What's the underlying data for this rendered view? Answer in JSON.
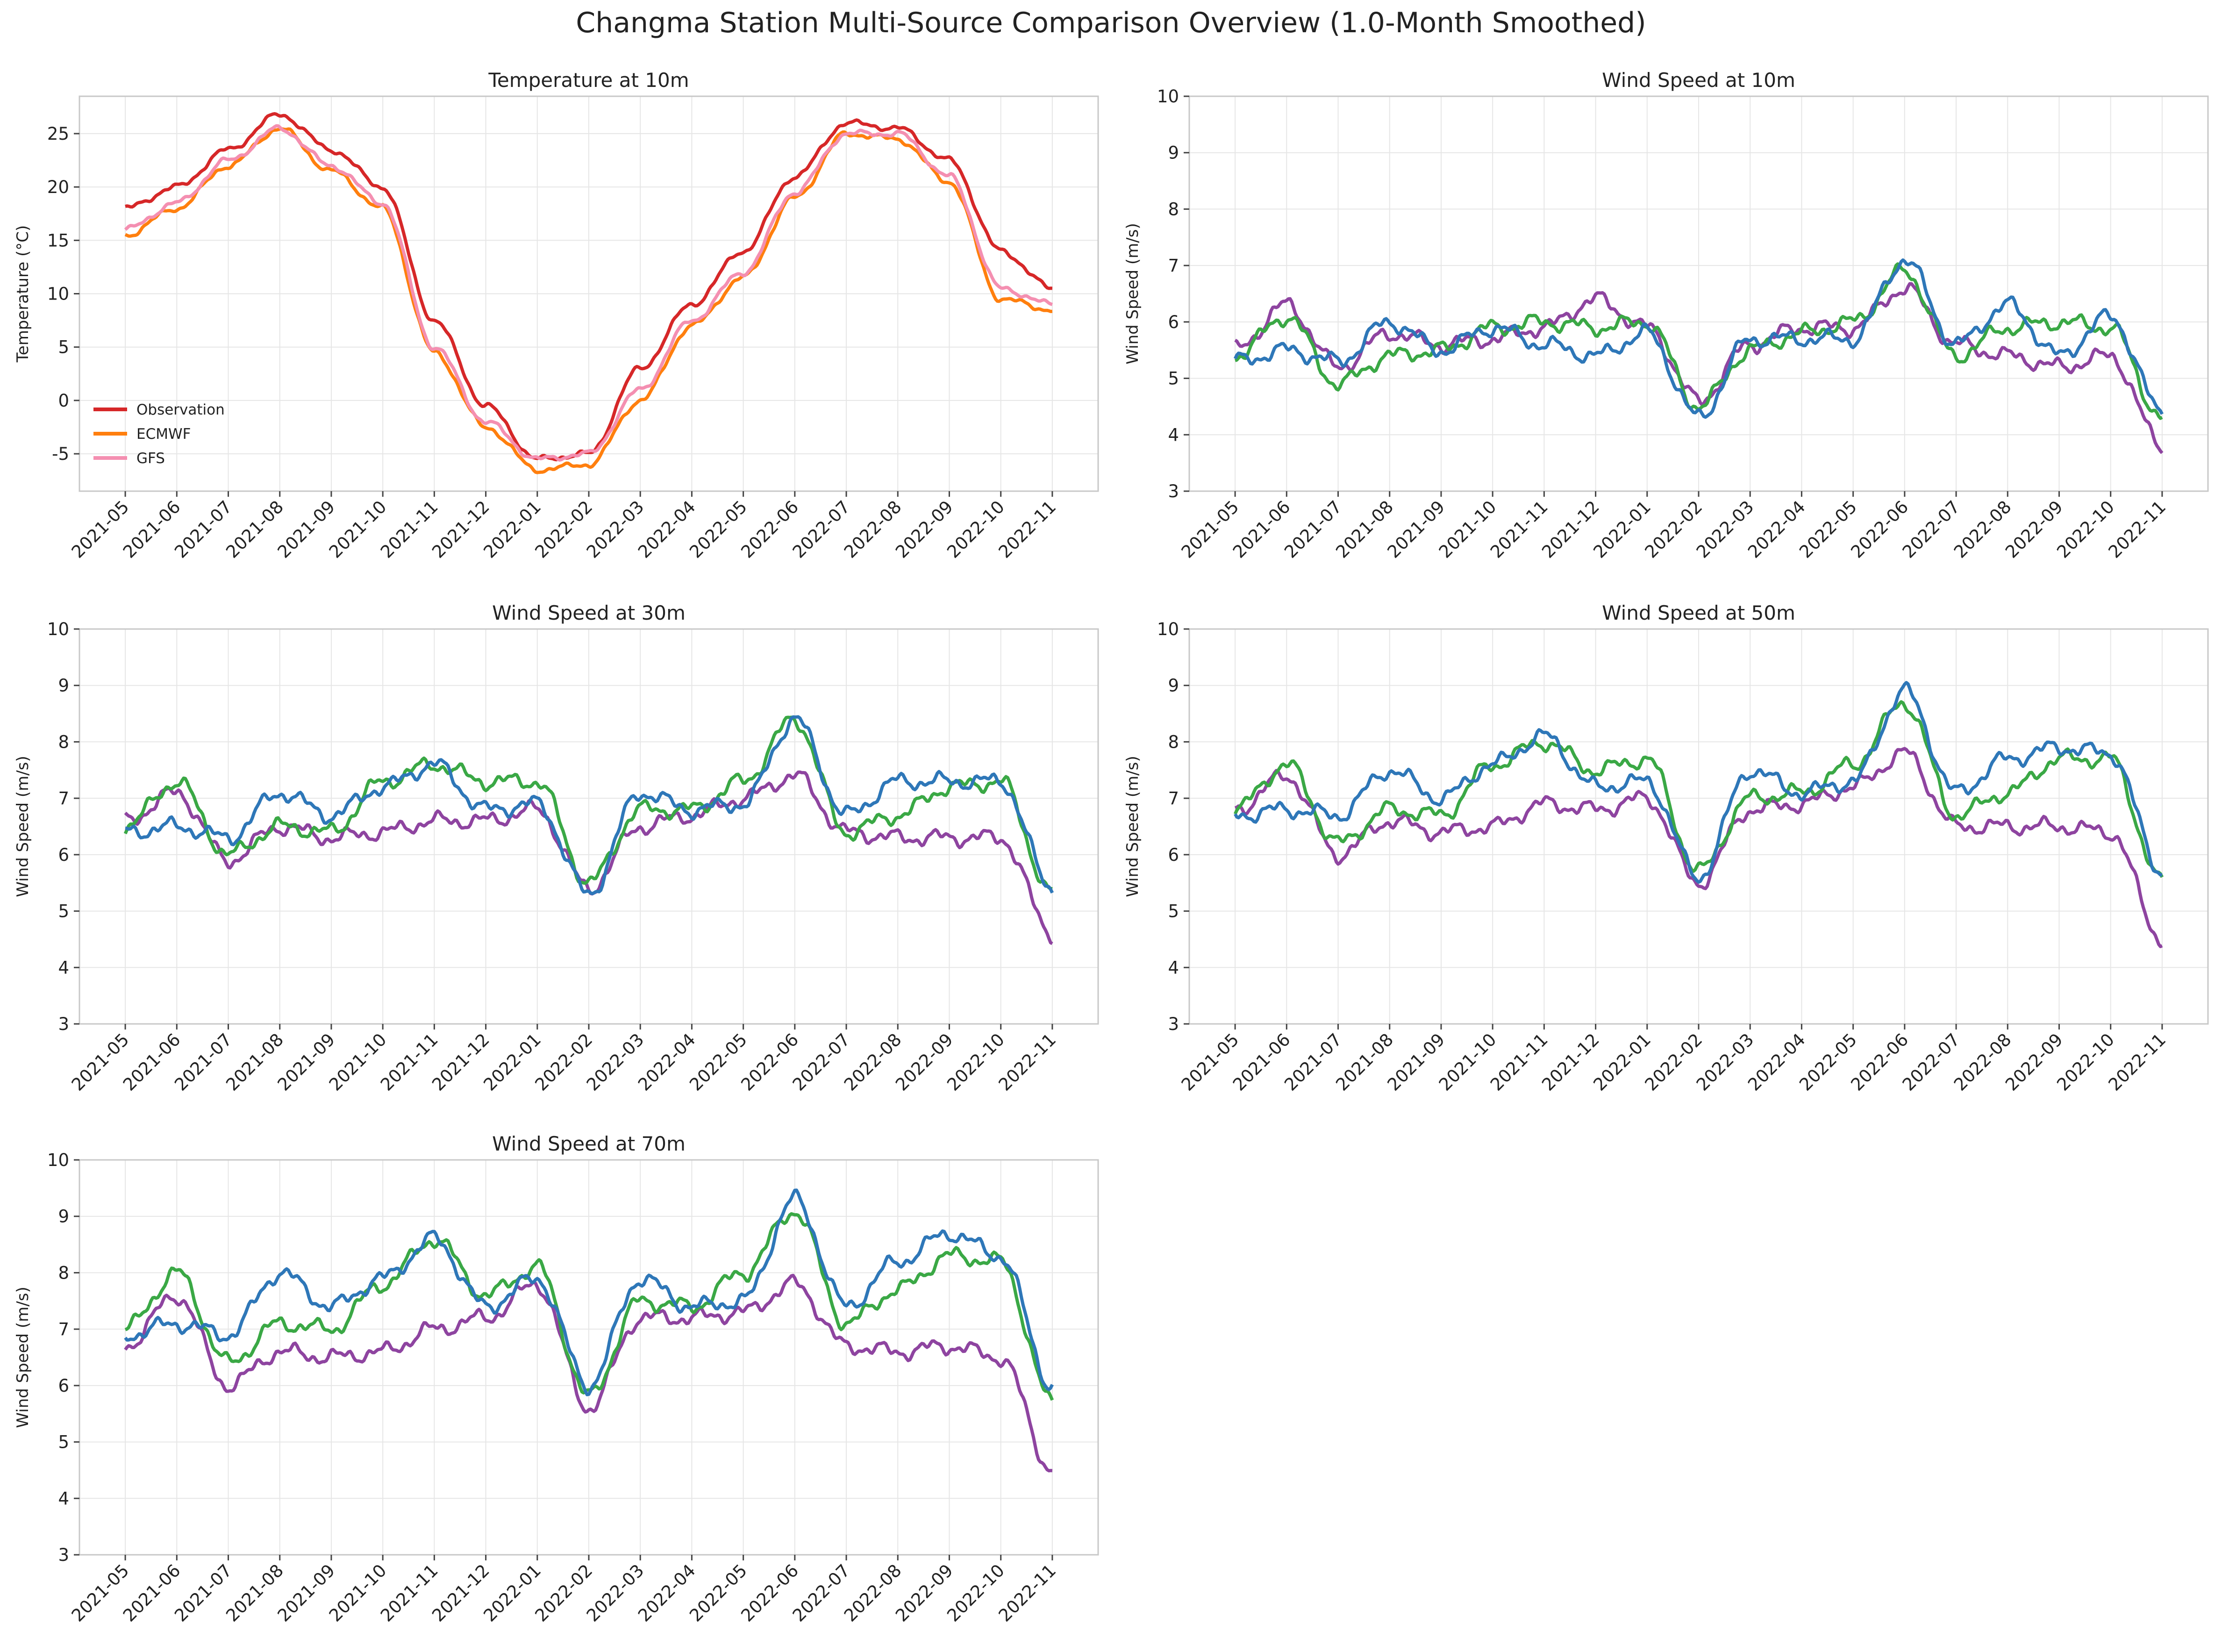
{
  "suptitle": "Changma Station Multi-Source Comparison Overview (1.0-Month Smoothed)",
  "date_ticks": [
    "2021-05",
    "2021-06",
    "2021-07",
    "2021-08",
    "2021-09",
    "2021-10",
    "2021-11",
    "2021-12",
    "2022-01",
    "2022-02",
    "2022-03",
    "2022-04",
    "2022-05",
    "2022-06",
    "2022-07",
    "2022-08",
    "2022-09",
    "2022-10",
    "2022-11"
  ],
  "colors": {
    "Observation": "#d62728",
    "ECMWF": "#ff7f0e",
    "GFS": "#f48fb1",
    "purple": "#8e44a0",
    "green": "#3aa845",
    "blue": "#2e77b8"
  },
  "chart_data": [
    {
      "type": "line",
      "title": "Temperature at 10m",
      "ylabel": "Temperature (°C)",
      "xlabel": "",
      "ylim": [
        -8.5,
        28.5
      ],
      "yticks": [
        -5,
        0,
        5,
        10,
        15,
        20,
        25
      ],
      "x_range": [
        "2021-05",
        "2022-11"
      ],
      "grid": true,
      "legend": "lower-left",
      "legend_entries": [
        "Observation",
        "ECMWF",
        "GFS"
      ],
      "x": [
        "2021-05",
        "2021-06",
        "2021-07",
        "2021-08",
        "2021-09",
        "2021-10",
        "2021-11",
        "2021-12",
        "2022-01",
        "2022-02",
        "2022-03",
        "2022-04",
        "2022-05",
        "2022-06",
        "2022-07",
        "2022-08",
        "2022-09",
        "2022-10",
        "2022-11"
      ],
      "series": [
        {
          "name": "Observation",
          "color": "#d62728",
          "values": [
            18,
            20,
            23.5,
            26.8,
            23.5,
            20,
            7.5,
            -0.5,
            -5.5,
            -5,
            3,
            9,
            14,
            21,
            26,
            25.5,
            22.5,
            14,
            10.5
          ]
        },
        {
          "name": "ECMWF",
          "color": "#ff7f0e",
          "values": [
            15.5,
            18,
            22,
            25.5,
            21.5,
            18,
            4.5,
            -2.5,
            -6.5,
            -6,
            0,
            7,
            11.5,
            19,
            25,
            24.5,
            20.5,
            9.5,
            8.5
          ]
        },
        {
          "name": "GFS",
          "color": "#f48fb1",
          "values": [
            16,
            18.5,
            22.5,
            25.5,
            22,
            18.5,
            5,
            -2,
            -5.5,
            -5,
            1,
            7.5,
            12,
            19.5,
            25,
            25,
            21,
            10.5,
            9
          ]
        }
      ]
    },
    {
      "type": "line",
      "title": "Wind Speed at 10m",
      "ylabel": "Wind Speed (m/s)",
      "xlabel": "",
      "ylim": [
        3,
        10
      ],
      "yticks": [
        3,
        4,
        5,
        6,
        7,
        8,
        9,
        10
      ],
      "x_range": [
        "2021-05",
        "2022-11"
      ],
      "grid": true,
      "x": [
        "2021-05",
        "2021-06",
        "2021-07",
        "2021-08",
        "2021-09",
        "2021-10",
        "2021-11",
        "2021-12",
        "2022-01",
        "2022-02",
        "2022-03",
        "2022-04",
        "2022-05",
        "2022-06",
        "2022-07",
        "2022-08",
        "2022-09",
        "2022-10",
        "2022-11"
      ],
      "series": [
        {
          "color": "#8e44a0",
          "values": [
            5.5,
            6.3,
            5.2,
            5.8,
            5.6,
            5.7,
            5.9,
            6.4,
            5.9,
            4.6,
            5.6,
            5.9,
            5.9,
            6.6,
            5.6,
            5.4,
            5.2,
            5.4,
            3.8
          ]
        },
        {
          "color": "#3aa845",
          "values": [
            5.4,
            6.1,
            4.9,
            5.4,
            5.5,
            5.9,
            6.0,
            5.9,
            6.0,
            4.5,
            5.5,
            5.8,
            6.0,
            6.9,
            5.4,
            5.9,
            6.0,
            5.9,
            4.3
          ]
        },
        {
          "color": "#2e77b8",
          "values": [
            5.3,
            5.5,
            5.3,
            6.0,
            5.5,
            5.9,
            5.6,
            5.4,
            5.8,
            4.3,
            5.7,
            5.7,
            5.7,
            7.1,
            5.6,
            6.3,
            5.4,
            6.1,
            4.4
          ]
        }
      ]
    },
    {
      "type": "line",
      "title": "Wind Speed at 30m",
      "ylabel": "Wind Speed (m/s)",
      "xlabel": "",
      "ylim": [
        3,
        10
      ],
      "yticks": [
        3,
        4,
        5,
        6,
        7,
        8,
        9,
        10
      ],
      "x_range": [
        "2021-05",
        "2022-11"
      ],
      "grid": true,
      "x": [
        "2021-05",
        "2021-06",
        "2021-07",
        "2021-08",
        "2021-09",
        "2021-10",
        "2021-11",
        "2021-12",
        "2022-01",
        "2022-02",
        "2022-03",
        "2022-04",
        "2022-05",
        "2022-06",
        "2022-07",
        "2022-08",
        "2022-09",
        "2022-10",
        "2022-11"
      ],
      "series": [
        {
          "color": "#8e44a0",
          "values": [
            6.6,
            7.1,
            5.9,
            6.5,
            6.3,
            6.4,
            6.6,
            6.6,
            6.8,
            5.4,
            6.5,
            6.7,
            7.0,
            7.4,
            6.4,
            6.3,
            6.3,
            6.3,
            4.6
          ]
        },
        {
          "color": "#3aa845",
          "values": [
            6.5,
            7.3,
            6.0,
            6.5,
            6.4,
            7.3,
            7.6,
            7.3,
            7.3,
            5.5,
            6.8,
            6.8,
            7.3,
            8.4,
            6.4,
            6.7,
            7.2,
            7.3,
            5.3
          ]
        },
        {
          "color": "#2e77b8",
          "values": [
            6.4,
            6.5,
            6.3,
            7.1,
            6.7,
            7.2,
            7.6,
            6.8,
            6.9,
            5.3,
            7.1,
            6.8,
            6.9,
            8.4,
            6.7,
            7.3,
            7.3,
            7.3,
            5.4
          ]
        }
      ]
    },
    {
      "type": "line",
      "title": "Wind Speed at 50m",
      "ylabel": "Wind Speed (m/s)",
      "xlabel": "",
      "ylim": [
        3,
        10
      ],
      "yticks": [
        3,
        4,
        5,
        6,
        7,
        8,
        9,
        10
      ],
      "x_range": [
        "2021-05",
        "2022-11"
      ],
      "grid": true,
      "x": [
        "2021-05",
        "2021-06",
        "2021-07",
        "2021-08",
        "2021-09",
        "2021-10",
        "2021-11",
        "2021-12",
        "2022-01",
        "2022-02",
        "2022-03",
        "2022-04",
        "2022-05",
        "2022-06",
        "2022-07",
        "2022-08",
        "2022-09",
        "2022-10",
        "2022-11"
      ],
      "series": [
        {
          "color": "#8e44a0",
          "values": [
            6.8,
            7.4,
            6.0,
            6.6,
            6.4,
            6.5,
            6.9,
            6.8,
            7.0,
            5.5,
            6.8,
            6.9,
            7.2,
            7.8,
            6.5,
            6.5,
            6.5,
            6.4,
            4.5
          ]
        },
        {
          "color": "#3aa845",
          "values": [
            6.8,
            7.6,
            6.2,
            6.8,
            6.7,
            7.6,
            8.0,
            7.5,
            7.7,
            5.7,
            7.0,
            7.1,
            7.6,
            8.7,
            6.7,
            7.1,
            7.7,
            7.7,
            5.5
          ]
        },
        {
          "color": "#2e77b8",
          "values": [
            6.7,
            6.8,
            6.7,
            7.5,
            7.0,
            7.6,
            8.1,
            7.2,
            7.3,
            5.6,
            7.5,
            7.1,
            7.3,
            8.9,
            7.1,
            7.7,
            7.9,
            7.8,
            5.7
          ]
        }
      ]
    },
    {
      "type": "line",
      "title": "Wind Speed at 70m",
      "ylabel": "Wind Speed (m/s)",
      "xlabel": "",
      "ylim": [
        3,
        10
      ],
      "yticks": [
        3,
        4,
        5,
        6,
        7,
        8,
        9,
        10
      ],
      "x_range": [
        "2021-05",
        "2022-11"
      ],
      "grid": true,
      "x": [
        "2021-05",
        "2021-06",
        "2021-07",
        "2021-08",
        "2021-09",
        "2021-10",
        "2021-11",
        "2021-12",
        "2022-01",
        "2022-02",
        "2022-03",
        "2022-04",
        "2022-05",
        "2022-06",
        "2022-07",
        "2022-08",
        "2022-09",
        "2022-10",
        "2022-11"
      ],
      "series": [
        {
          "color": "#8e44a0",
          "values": [
            6.7,
            7.6,
            6.0,
            6.6,
            6.5,
            6.6,
            7.0,
            7.2,
            7.8,
            5.6,
            7.2,
            7.2,
            7.3,
            7.8,
            6.7,
            6.6,
            6.7,
            6.5,
            4.5
          ]
        },
        {
          "color": "#3aa845",
          "values": [
            7.0,
            8.0,
            6.4,
            7.1,
            7.0,
            7.8,
            8.6,
            7.6,
            8.1,
            5.8,
            7.5,
            7.4,
            8.0,
            9.1,
            7.1,
            7.7,
            8.3,
            8.2,
            5.7
          ]
        },
        {
          "color": "#2e77b8",
          "values": [
            6.9,
            7.1,
            6.9,
            8.0,
            7.4,
            7.9,
            8.6,
            7.4,
            7.9,
            6.0,
            7.9,
            7.4,
            7.5,
            9.3,
            7.4,
            8.2,
            8.7,
            8.3,
            6.0
          ]
        }
      ]
    }
  ]
}
